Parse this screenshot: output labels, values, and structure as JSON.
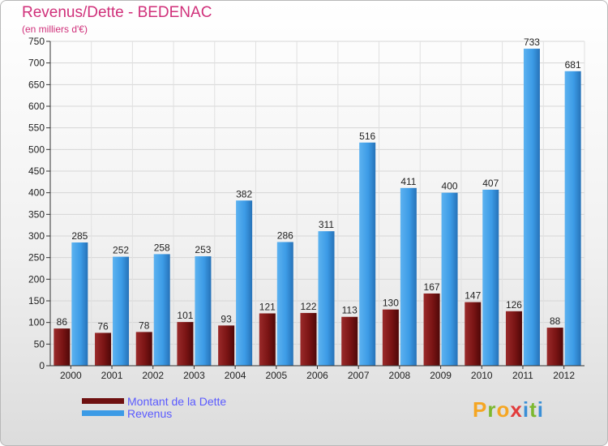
{
  "header": {
    "title": "Revenus/Dette - BEDENAC",
    "subtitle": "(en milliers d'€)"
  },
  "logo": {
    "letters": [
      "P",
      "r",
      "o",
      "x",
      "i",
      "t",
      "i"
    ],
    "colors": [
      "#f5a623",
      "#7cb82f",
      "#f5a623",
      "#e23b3b",
      "#3a8fd6",
      "#7cb82f",
      "#3a8fd6"
    ]
  },
  "chart_data": {
    "type": "bar",
    "categories": [
      "2000",
      "2001",
      "2002",
      "2003",
      "2004",
      "2005",
      "2006",
      "2007",
      "2008",
      "2009",
      "2010",
      "2011",
      "2012"
    ],
    "series": [
      {
        "name": "Montant de la Dette",
        "color": "#7a1414",
        "values": [
          86,
          76,
          78,
          101,
          93,
          121,
          122,
          113,
          130,
          167,
          147,
          126,
          88
        ]
      },
      {
        "name": "Revenus",
        "color": "#3c9be6",
        "values": [
          285,
          252,
          258,
          253,
          382,
          286,
          311,
          516,
          411,
          400,
          407,
          733,
          681
        ]
      }
    ],
    "ylim": [
      0,
      750
    ],
    "yticks": [
      0,
      50,
      100,
      150,
      200,
      250,
      300,
      350,
      400,
      450,
      500,
      550,
      600,
      650,
      700,
      750
    ],
    "grid": true,
    "legend_position": "bottom-left"
  }
}
